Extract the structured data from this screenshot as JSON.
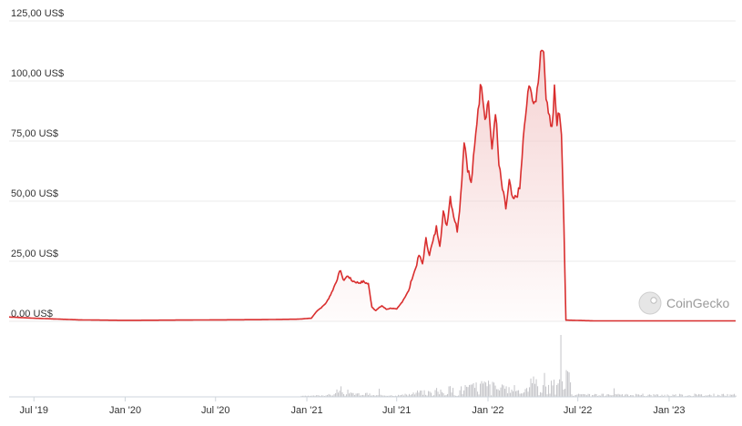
{
  "chart_data": {
    "type": "area",
    "title": "",
    "xlabel": "",
    "ylabel": "",
    "y_ticks": [
      "0,00 US$",
      "25,00 US$",
      "50,00 US$",
      "75,00 US$",
      "100,00 US$",
      "125,00 US$"
    ],
    "y_tick_values": [
      0,
      25,
      50,
      75,
      100,
      125
    ],
    "ylim": [
      0,
      125
    ],
    "x_ticks": [
      {
        "label": "Jul '19",
        "date": "2019-07-01"
      },
      {
        "label": "Jan '20",
        "date": "2020-01-01"
      },
      {
        "label": "Jul '20",
        "date": "2020-07-01"
      },
      {
        "label": "Jan '21",
        "date": "2021-01-01"
      },
      {
        "label": "Jul '21",
        "date": "2021-07-01"
      },
      {
        "label": "Jan '22",
        "date": "2022-01-01"
      },
      {
        "label": "Jul '22",
        "date": "2022-07-01"
      },
      {
        "label": "Jan '23",
        "date": "2023-01-01"
      }
    ],
    "xlim": [
      "2019-05-12",
      "2023-05-15"
    ],
    "grid": true,
    "legend": "none",
    "line_color": "#d92e2e",
    "fill_color": "#f2c4c4",
    "volume_color": "#c8c8cc",
    "series": [
      {
        "values": [
          [
            "2019-05-12",
            1.8
          ],
          [
            "2019-07-01",
            1.3
          ],
          [
            "2019-10-01",
            0.6
          ],
          [
            "2020-01-01",
            0.4
          ],
          [
            "2020-04-01",
            0.5
          ],
          [
            "2020-07-01",
            0.6
          ],
          [
            "2020-10-01",
            0.7
          ],
          [
            "2020-12-15",
            0.9
          ],
          [
            "2021-01-10",
            1.3
          ],
          [
            "2021-01-22",
            4.5
          ],
          [
            "2021-02-01",
            6.0
          ],
          [
            "2021-02-10",
            8.0
          ],
          [
            "2021-02-20",
            12.0
          ],
          [
            "2021-03-01",
            16.5
          ],
          [
            "2021-03-10",
            21.5
          ],
          [
            "2021-03-15",
            17.0
          ],
          [
            "2021-03-25",
            19.0
          ],
          [
            "2021-04-01",
            17.0
          ],
          [
            "2021-04-15",
            16.0
          ],
          [
            "2021-04-25",
            16.5
          ],
          [
            "2021-05-05",
            15.5
          ],
          [
            "2021-05-12",
            6.0
          ],
          [
            "2021-05-20",
            4.5
          ],
          [
            "2021-06-01",
            6.5
          ],
          [
            "2021-06-10",
            5.0
          ],
          [
            "2021-06-20",
            5.5
          ],
          [
            "2021-07-01",
            5.0
          ],
          [
            "2021-07-10",
            7.5
          ],
          [
            "2021-07-20",
            11.0
          ],
          [
            "2021-07-25",
            12.5
          ],
          [
            "2021-08-01",
            18.0
          ],
          [
            "2021-08-08",
            22.0
          ],
          [
            "2021-08-15",
            27.5
          ],
          [
            "2021-08-22",
            24.0
          ],
          [
            "2021-08-29",
            34.0
          ],
          [
            "2021-09-05",
            28.0
          ],
          [
            "2021-09-12",
            33.0
          ],
          [
            "2021-09-19",
            39.0
          ],
          [
            "2021-09-26",
            32.0
          ],
          [
            "2021-10-03",
            45.0
          ],
          [
            "2021-10-10",
            40.0
          ],
          [
            "2021-10-17",
            52.0
          ],
          [
            "2021-10-24",
            44.0
          ],
          [
            "2021-10-31",
            38.0
          ],
          [
            "2021-11-07",
            52.0
          ],
          [
            "2021-11-14",
            76.0
          ],
          [
            "2021-11-21",
            64.0
          ],
          [
            "2021-11-28",
            57.0
          ],
          [
            "2021-12-05",
            72.0
          ],
          [
            "2021-12-12",
            89.0
          ],
          [
            "2021-12-19",
            100.0
          ],
          [
            "2021-12-26",
            85.0
          ],
          [
            "2022-01-02",
            92.0
          ],
          [
            "2022-01-09",
            70.0
          ],
          [
            "2022-01-16",
            88.0
          ],
          [
            "2022-01-23",
            65.0
          ],
          [
            "2022-01-30",
            55.0
          ],
          [
            "2022-02-06",
            47.0
          ],
          [
            "2022-02-13",
            58.0
          ],
          [
            "2022-02-20",
            50.0
          ],
          [
            "2022-02-27",
            52.0
          ],
          [
            "2022-03-06",
            55.0
          ],
          [
            "2022-03-13",
            75.0
          ],
          [
            "2022-03-20",
            90.0
          ],
          [
            "2022-03-27",
            100.0
          ],
          [
            "2022-04-03",
            88.0
          ],
          [
            "2022-04-10",
            96.0
          ],
          [
            "2022-04-17",
            112.0
          ],
          [
            "2022-04-21",
            116.0
          ],
          [
            "2022-04-28",
            95.0
          ],
          [
            "2022-05-05",
            85.0
          ],
          [
            "2022-05-10",
            80.0
          ],
          [
            "2022-05-15",
            96.0
          ],
          [
            "2022-05-20",
            82.0
          ],
          [
            "2022-05-25",
            88.0
          ],
          [
            "2022-05-29",
            78.0
          ],
          [
            "2022-06-03",
            40.0
          ],
          [
            "2022-06-07",
            0.5
          ],
          [
            "2022-08-01",
            0.2
          ],
          [
            "2022-12-01",
            0.2
          ],
          [
            "2023-05-15",
            0.2
          ]
        ]
      }
    ],
    "watermark": "CoinGecko"
  }
}
